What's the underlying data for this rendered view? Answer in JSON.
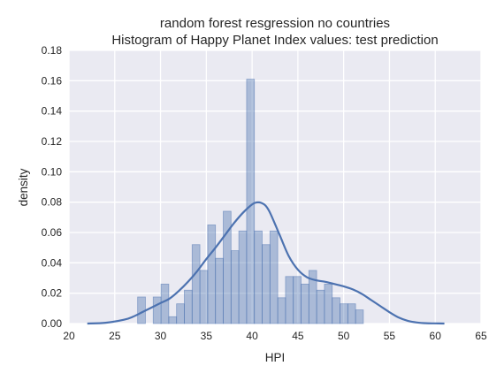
{
  "chart_data": {
    "type": "bar",
    "title_lines": [
      "random forest resgression no countries",
      "Histogram of Happy Planet Index values: test prediction"
    ],
    "xlabel": "HPI",
    "ylabel": "density",
    "xlim": [
      20,
      65
    ],
    "ylim": [
      0,
      0.18
    ],
    "xticks": [
      20,
      25,
      30,
      35,
      40,
      45,
      50,
      55,
      60,
      65
    ],
    "yticks": [
      0.0,
      0.02,
      0.04,
      0.06,
      0.08,
      0.1,
      0.12,
      0.14,
      0.16,
      0.18
    ],
    "xtick_labels": [
      "20",
      "25",
      "30",
      "35",
      "40",
      "45",
      "50",
      "55",
      "60",
      "65"
    ],
    "ytick_labels": [
      "0.00",
      "0.02",
      "0.04",
      "0.06",
      "0.08",
      "0.10",
      "0.12",
      "0.14",
      "0.16",
      "0.18"
    ],
    "grid": true,
    "colors": {
      "plot_bg": "#EAEAF2",
      "grid": "#FFFFFF",
      "bar_fill": "#4C72B0",
      "bar_alpha": 0.4,
      "kde_line": "#4C72B0",
      "text": "#262626"
    },
    "histogram": {
      "bin_edges": [
        27.5,
        28.35,
        29.2,
        30.05,
        30.9,
        31.75,
        32.6,
        33.45,
        34.3,
        35.15,
        36.0,
        36.85,
        37.7,
        38.55,
        39.4,
        40.25,
        41.1,
        41.95,
        42.8,
        43.65,
        44.5,
        45.35,
        46.2,
        47.05,
        47.9,
        48.75,
        49.6,
        50.45,
        51.3,
        52.15,
        53.0,
        53.85,
        54.7,
        55.55
      ],
      "densities": [
        0.0175,
        0.0,
        0.0175,
        0.026,
        0.0045,
        0.013,
        0.022,
        0.052,
        0.035,
        0.065,
        0.043,
        0.074,
        0.048,
        0.061,
        0.161,
        0.061,
        0.052,
        0.061,
        0.017,
        0.031,
        0.031,
        0.026,
        0.035,
        0.022,
        0.026,
        0.017,
        0.013,
        0.013,
        0.009,
        0.0,
        0.0,
        0.0,
        0.0
      ]
    },
    "kde": {
      "x": [
        22.0,
        24.0,
        26.0,
        27.0,
        28.0,
        29.0,
        30.0,
        31.0,
        32.0,
        33.0,
        34.0,
        35.0,
        36.0,
        37.0,
        38.0,
        39.0,
        40.0,
        40.5,
        41.0,
        41.5,
        42.0,
        43.0,
        44.0,
        45.0,
        46.0,
        47.0,
        48.0,
        49.0,
        50.0,
        51.0,
        52.0,
        53.0,
        54.0,
        55.0,
        56.0,
        57.0,
        58.0,
        59.0,
        60.0,
        61.0
      ],
      "y": [
        0.0,
        0.0005,
        0.0025,
        0.0045,
        0.0075,
        0.0105,
        0.0135,
        0.0165,
        0.0215,
        0.0275,
        0.0345,
        0.0425,
        0.05,
        0.058,
        0.066,
        0.073,
        0.0785,
        0.0798,
        0.0795,
        0.0775,
        0.0725,
        0.0585,
        0.0445,
        0.0355,
        0.0305,
        0.0285,
        0.0275,
        0.026,
        0.0245,
        0.0225,
        0.0195,
        0.0155,
        0.0115,
        0.0075,
        0.004,
        0.0018,
        0.0007,
        0.0002,
        0.0001,
        0.0
      ]
    }
  }
}
